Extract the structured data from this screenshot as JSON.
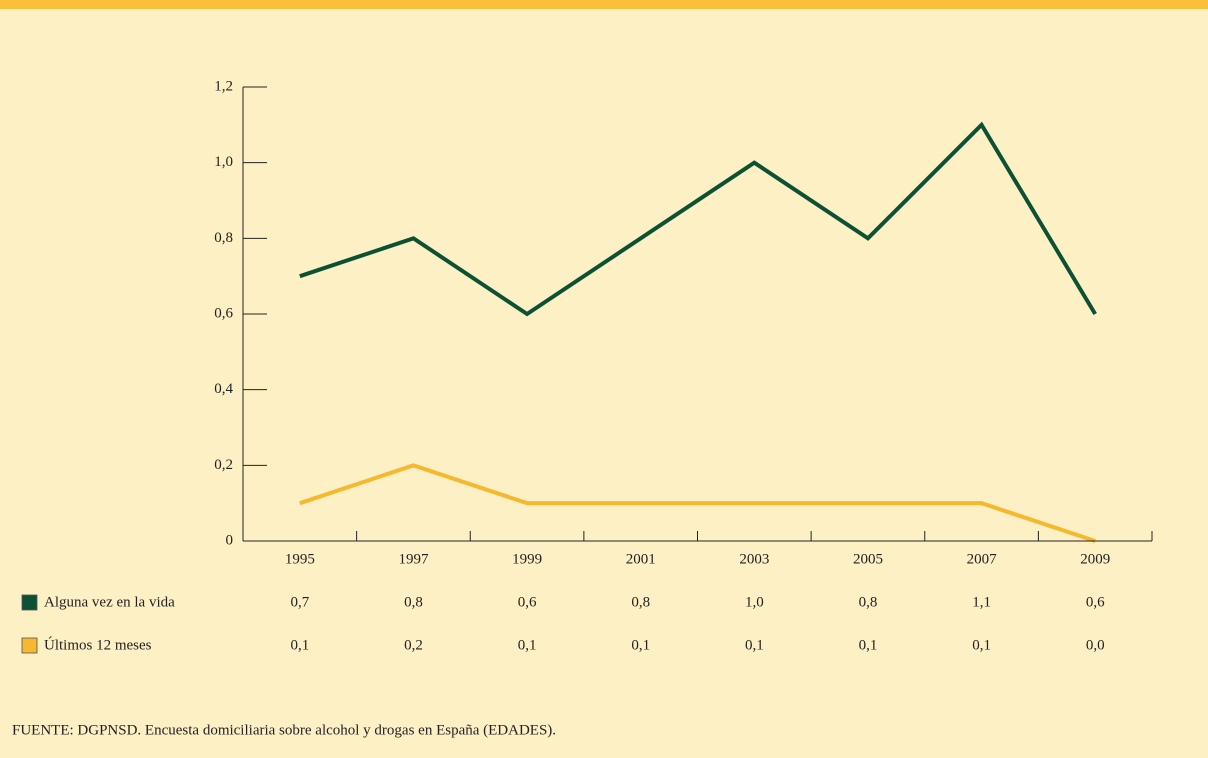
{
  "chart_data": {
    "type": "line",
    "categories": [
      "1995",
      "1997",
      "1999",
      "2001",
      "2003",
      "2005",
      "2007",
      "2009"
    ],
    "series": [
      {
        "name": "Alguna vez en la vida",
        "color": "#0d5135",
        "values": [
          0.7,
          0.8,
          0.6,
          0.8,
          1.0,
          0.8,
          1.1,
          0.6
        ],
        "value_labels": [
          "0,7",
          "0,8",
          "0,6",
          "0,8",
          "1,0",
          "0,8",
          "1,1",
          "0,6"
        ]
      },
      {
        "name": "Últimos 12 meses",
        "color": "#f5b82e",
        "values": [
          0.1,
          0.2,
          0.1,
          0.1,
          0.1,
          0.1,
          0.1,
          0.0
        ],
        "value_labels": [
          "0,1",
          "0,2",
          "0,1",
          "0,1",
          "0,1",
          "0,1",
          "0,1",
          "0,0"
        ]
      }
    ],
    "ylim": [
      0,
      1.2
    ],
    "yticks": [
      0,
      {
        "value": 0.2,
        "label": "0,2"
      },
      {
        "value": 0.4,
        "label": "0,4"
      },
      {
        "value": 0.6,
        "label": "0,6"
      },
      {
        "value": 0.8,
        "label": "0,8"
      },
      {
        "value": 1.0,
        "label": "1,0"
      },
      {
        "value": 1.2,
        "label": "1,2"
      }
    ],
    "grid": false,
    "source": "FUENTE: DGPNSD. Encuesta domiciliaria sobre alcohol y drogas en España (EDADES)."
  }
}
